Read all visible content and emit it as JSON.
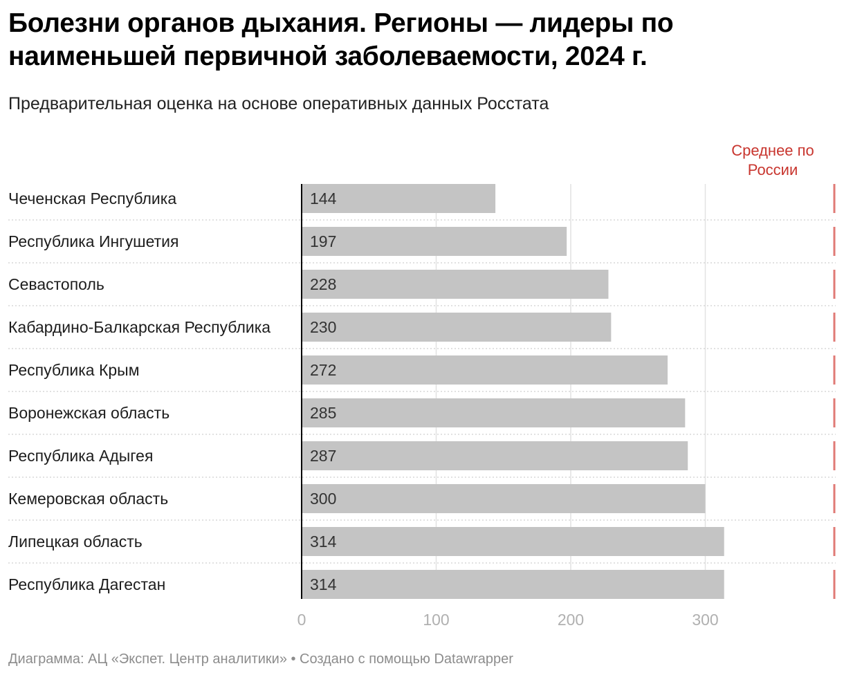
{
  "title": "Болезни органов дыхания. Регионы — лидеры по наименьшей первичной заболеваемости, 2024 г.",
  "subtitle": "Предварительная оценка на основе оперативных данных Росстата",
  "footer": "Диаграмма: АЦ «Экспет. Центр аналитики» • Создано с помощью Datawrapper",
  "colors": {
    "bar": "#c4c4c4",
    "reference": "#e07a76",
    "reference_text": "#c8352e",
    "grid": "#e2e2e2",
    "axis": "#000000"
  },
  "chart_data": {
    "type": "bar",
    "orientation": "horizontal",
    "title": "Болезни органов дыхания. Регионы — лидеры по наименьшей первичной заболеваемости, 2024 г.",
    "subtitle": "Предварительная оценка на основе оперативных данных Росстата",
    "categories": [
      "Чеченская Республика",
      "Республика Ингушетия",
      "Севастополь",
      "Кабардино-Балкарская Республика",
      "Республика Крым",
      "Воронежская область",
      "Республика Адыгея",
      "Кемеровская область",
      "Липецкая область",
      "Республика Дагестан"
    ],
    "values": [
      144,
      197,
      228,
      230,
      272,
      285,
      287,
      300,
      314,
      314
    ],
    "value_labels": [
      "144",
      "197",
      "228",
      "230",
      "272",
      "285",
      "287",
      "300",
      "314",
      "314"
    ],
    "xlim": [
      0,
      395
    ],
    "xticks": [
      0,
      100,
      200,
      300
    ],
    "xtick_labels": [
      "0",
      "100",
      "200",
      "300"
    ],
    "reference_line": {
      "label_lines": [
        "Среднее по",
        "России"
      ],
      "value": 395
    },
    "xlabel": "",
    "ylabel": "",
    "grid": true,
    "legend": "none"
  }
}
